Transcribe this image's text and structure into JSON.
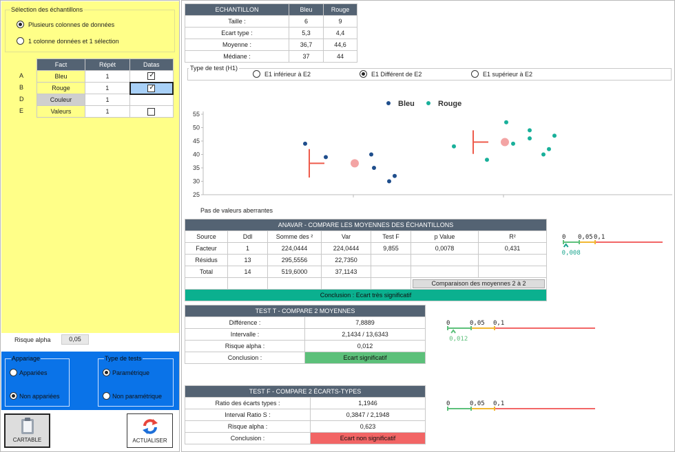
{
  "left": {
    "selection_title": "Sélection des échantillons",
    "option1": "Plusieurs colonnes de données",
    "option2": "1 colonne données et 1 sélection",
    "table_headers": [
      "Fact",
      "Répét",
      "Datas"
    ],
    "rows": [
      {
        "key": "A",
        "fact": "Bleu",
        "repet": "1",
        "checked": true
      },
      {
        "key": "B",
        "fact": "Rouge",
        "repet": "1",
        "checked": true
      },
      {
        "key": "D",
        "fact": "Couleur",
        "repet": "1",
        "checked": false
      },
      {
        "key": "E",
        "fact": "Valeurs",
        "repet": "1",
        "checked": false
      }
    ],
    "alpha_label": "Risque alpha",
    "alpha_value": "0,05",
    "appariement_title": "Appariage",
    "app_opt1": "Appariées",
    "app_opt2": "Non appariées",
    "tests_title": "Type de tests",
    "test_opt1": "Paramétrique",
    "test_opt2": "Non paramétrique",
    "btn_cartable": "CARTABLE",
    "btn_actualiser": "ACTUALISER"
  },
  "summary": {
    "headers": [
      "ECHANTILLON",
      "Bleu",
      "Rouge"
    ],
    "rows": [
      [
        "Taille :",
        "6",
        "9"
      ],
      [
        "Ecart type :",
        "5,3",
        "4,4"
      ],
      [
        "Moyenne :",
        "36,7",
        "44,6"
      ],
      [
        "Médiane :",
        "37",
        "44"
      ]
    ]
  },
  "test_type": {
    "title": "Type de test (H1)",
    "opt1": "E1 inférieur à E2",
    "opt2": "E1 Différent de E2",
    "opt3": "E1 supérieur à E2"
  },
  "chart_data": {
    "type": "scatter",
    "series": [
      {
        "name": "Bleu",
        "color": "#1f4e8c",
        "y": [
          44,
          39,
          35,
          40,
          30,
          32
        ],
        "x_offsets": [
          -0.35,
          -0.2,
          0.15,
          0.13,
          0.26,
          0.3
        ],
        "mean": 36.7,
        "sd": 5.3
      },
      {
        "name": "Rouge",
        "color": "#19b09a",
        "y": [
          43,
          38,
          52,
          44,
          46,
          49,
          40,
          42,
          47
        ],
        "x_offsets": [
          -0.36,
          -0.12,
          0.02,
          0.07,
          0.19,
          0.19,
          0.29,
          0.33,
          0.37
        ],
        "mean": 44.6,
        "sd": 4.4
      }
    ],
    "yticks": [
      "55",
      "50",
      "45",
      "40",
      "35",
      "30",
      "25"
    ],
    "ylim": [
      25,
      55
    ],
    "mean_marker_color": "#f3a4a4",
    "error_color": "#ee5a4a",
    "note": "Pas de valeurs aberrantes"
  },
  "anova": {
    "title": "ANAVAR - COMPARE LES MOYENNES DES ÉCHANTILLONS",
    "headers": [
      "Source",
      "Ddl",
      "Somme des ²",
      "Var",
      "Test F",
      "p Value",
      "R²"
    ],
    "rows": [
      [
        "Facteur",
        "1",
        "224,0444",
        "224,0444",
        "9,855",
        "0,0078",
        "0,431"
      ],
      [
        "Résidus",
        "13",
        "295,5556",
        "22,7350",
        "",
        "",
        ""
      ],
      [
        "Total",
        "14",
        "519,6000",
        "37,1143",
        "",
        "",
        ""
      ]
    ],
    "compare_button": "Comparaison des moyennes 2 à 2",
    "conclusion": "Conclusion : Ecart très significatif",
    "scale": {
      "ticks": [
        "0",
        "0,05",
        "0,1"
      ],
      "value": "0,008",
      "value_color": "#19a58e",
      "p": 0.008
    }
  },
  "ttest": {
    "title": "TEST T - COMPARE 2 MOYENNES",
    "rows": [
      [
        "Différence :",
        "7,8889"
      ],
      [
        "Intervalle :",
        "2,1434 / 13,6343"
      ],
      [
        "Risque alpha :",
        "0,012"
      ],
      [
        "Conclusion :",
        "Ecart significatif"
      ]
    ],
    "scale": {
      "ticks": [
        "0",
        "0,05",
        "0,1"
      ],
      "value": "0,012",
      "value_color": "#5cc07a",
      "p": 0.012
    }
  },
  "ftest": {
    "title": "TEST F - COMPARE 2 ÉCARTS-TYPES",
    "rows": [
      [
        "Ratio des écarts types :",
        "1,1946"
      ],
      [
        "Interval Ratio S :",
        "0,3847 / 2,1948"
      ],
      [
        "Risque alpha :",
        "0,623"
      ],
      [
        "Conclusion :",
        "Ecart non significatif"
      ]
    ],
    "scale": {
      "ticks": [
        "0",
        "0,05",
        "0,1"
      ],
      "value": "0,623",
      "value_color": "#f26565",
      "p": 0.623
    }
  }
}
